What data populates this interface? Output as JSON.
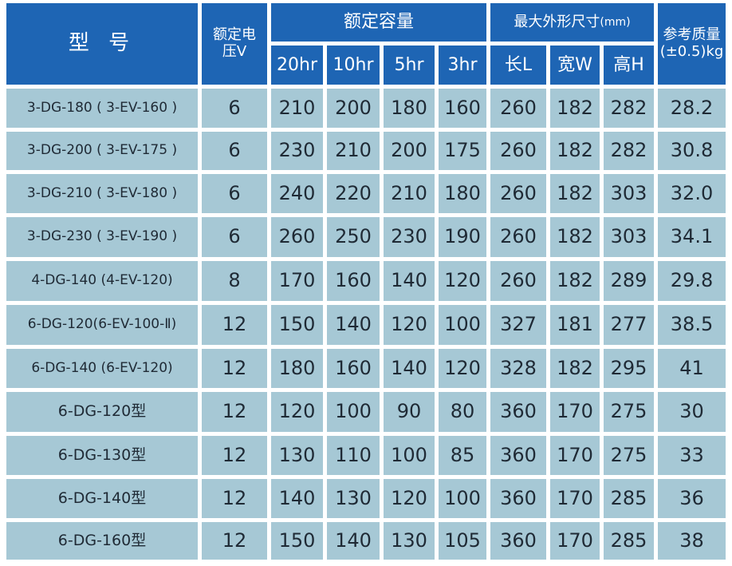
{
  "header": {
    "model": "型 号",
    "voltage": "额定电压V",
    "capacity": "额定容量",
    "dimensions": "最大外形尺寸",
    "dimensions_unit": "(mm)",
    "mass": "参考质量(±0.5)kg",
    "capacity_cols": [
      "20hr",
      "10hr",
      "5hr",
      "3hr"
    ],
    "dimension_cols": [
      "长L",
      "宽W",
      "高H"
    ]
  },
  "rows": [
    {
      "model": "3-DG-180 ( 3-EV-160 )",
      "v": "6",
      "c20": "210",
      "c10": "200",
      "c5": "180",
      "c3": "160",
      "l": "260",
      "w": "182",
      "h": "282",
      "kg": "28.2"
    },
    {
      "model": "3-DG-200 ( 3-EV-175 )",
      "v": "6",
      "c20": "230",
      "c10": "210",
      "c5": "200",
      "c3": "175",
      "l": "260",
      "w": "182",
      "h": "282",
      "kg": "30.8"
    },
    {
      "model": "3-DG-210 ( 3-EV-180 )",
      "v": "6",
      "c20": "240",
      "c10": "220",
      "c5": "210",
      "c3": "180",
      "l": "260",
      "w": "182",
      "h": "303",
      "kg": "32.0"
    },
    {
      "model": "3-DG-230 ( 3-EV-190 )",
      "v": "6",
      "c20": "260",
      "c10": "250",
      "c5": "230",
      "c3": "190",
      "l": "260",
      "w": "182",
      "h": "303",
      "kg": "34.1"
    },
    {
      "model": "4-DG-140 (4-EV-120)",
      "v": "8",
      "c20": "170",
      "c10": "160",
      "c5": "140",
      "c3": "120",
      "l": "260",
      "w": "182",
      "h": "289",
      "kg": "29.8"
    },
    {
      "model": "6-DG-120(6-EV-100-Ⅱ)",
      "v": "12",
      "c20": "150",
      "c10": "140",
      "c5": "120",
      "c3": "100",
      "l": "327",
      "w": "181",
      "h": "277",
      "kg": "38.5"
    },
    {
      "model": "6-DG-140 (6-EV-120)",
      "v": "12",
      "c20": "180",
      "c10": "160",
      "c5": "140",
      "c3": "120",
      "l": "328",
      "w": "182",
      "h": "295",
      "kg": "41"
    },
    {
      "model": "6-DG-120型",
      "v": "12",
      "c20": "120",
      "c10": "100",
      "c5": "90",
      "c3": "80",
      "l": "360",
      "w": "170",
      "h": "275",
      "kg": "30"
    },
    {
      "model": "6-DG-130型",
      "v": "12",
      "c20": "130",
      "c10": "110",
      "c5": "100",
      "c3": "85",
      "l": "360",
      "w": "170",
      "h": "275",
      "kg": "33"
    },
    {
      "model": "6-DG-140型",
      "v": "12",
      "c20": "140",
      "c10": "130",
      "c5": "120",
      "c3": "100",
      "l": "360",
      "w": "170",
      "h": "285",
      "kg": "36"
    },
    {
      "model": "6-DG-160型",
      "v": "12",
      "c20": "150",
      "c10": "140",
      "c5": "130",
      "c3": "105",
      "l": "360",
      "w": "170",
      "h": "285",
      "kg": "38"
    }
  ]
}
